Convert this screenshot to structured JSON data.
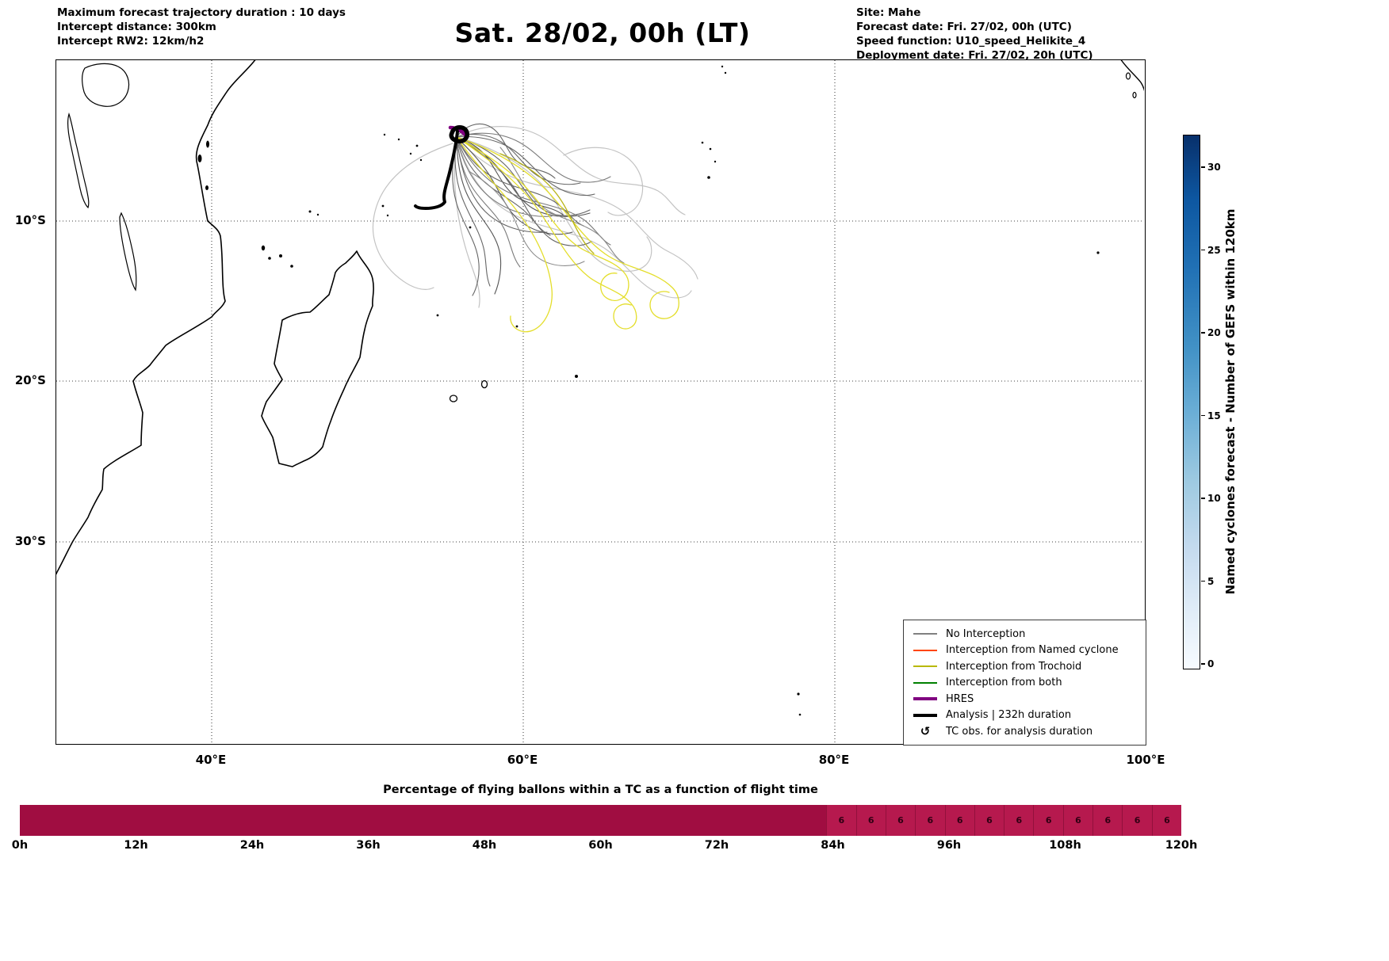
{
  "header": {
    "left": {
      "line1": "Maximum forecast trajectory duration : 10 days",
      "line2": "Intercept distance: 300km",
      "line3": "Intercept RW2: 12km/h2"
    },
    "title": "Sat. 28/02, 00h (LT)",
    "right": {
      "line1": "Site: Mahe",
      "line2": "Forecast date: Fri. 27/02, 00h (UTC)",
      "line3": "Speed function: U10_speed_Helikite_4",
      "line4": "Deployment date: Fri. 27/02, 20h (UTC)"
    }
  },
  "map": {
    "x_ticks": [
      "40°E",
      "60°E",
      "80°E",
      "100°E"
    ],
    "y_ticks": [
      "10°S",
      "20°S",
      "30°S"
    ],
    "legend": {
      "items": [
        {
          "label": "No Interception",
          "color": "#808080",
          "line_weight": "thin"
        },
        {
          "label": "Interception from Named cyclone",
          "color": "#ff4500",
          "line_weight": "thin"
        },
        {
          "label": "Interception from Trochoid",
          "color": "#b8b800",
          "line_weight": "thin"
        },
        {
          "label": "Interception from both",
          "color": "#008000",
          "line_weight": "thin"
        },
        {
          "label": "HRES",
          "color": "#800080",
          "line_weight": "thick"
        },
        {
          "label": "Analysis | 232h duration",
          "color": "#000000",
          "line_weight": "thick"
        },
        {
          "label": "TC obs. for analysis duration",
          "symbol": "↺"
        }
      ]
    }
  },
  "chart_data": [
    {
      "type": "bar",
      "title": "Percentage of flying ballons within a TC as a function of flight time",
      "x_ticks": [
        "0h",
        "12h",
        "24h",
        "36h",
        "48h",
        "60h",
        "72h",
        "84h",
        "96h",
        "108h",
        "120h"
      ],
      "x_range_hours": [
        0,
        120
      ],
      "segment_hours": 3,
      "values": [
        0,
        0,
        0,
        0,
        0,
        0,
        0,
        0,
        0,
        0,
        0,
        0,
        0,
        0,
        0,
        0,
        0,
        0,
        0,
        0,
        0,
        0,
        0,
        0,
        0,
        0,
        0,
        0,
        6,
        6,
        6,
        6,
        6,
        6,
        6,
        6,
        6,
        6,
        6,
        6
      ],
      "bar_colors": {
        "zero_value": "#A00D41",
        "positive_value": "#B6194E"
      },
      "ylabel": "",
      "legend_position": "none"
    },
    {
      "type": "colorbar",
      "label": "Named cyclones forecast - Number of GEFS within 120km",
      "ticks": [
        30,
        25,
        20,
        15,
        10,
        5,
        0
      ],
      "value_range": [
        0,
        32
      ],
      "colormap_top_hex": "#08306b",
      "colormap_bottom_hex": "#f7fbff"
    }
  ]
}
